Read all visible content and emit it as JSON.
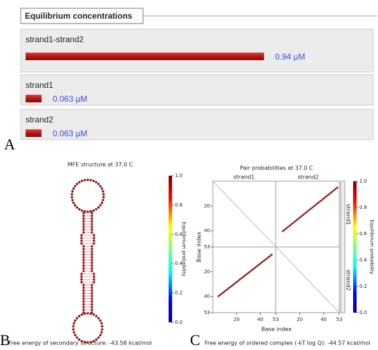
{
  "panel_a": {
    "label": "A",
    "title": "Equilibrium concentrations",
    "concentrations": [
      {
        "name": "strand1-strand2",
        "value": 0.94,
        "label": "0.94 µM"
      },
      {
        "name": "strand1",
        "value": 0.063,
        "label": "0.063 µM"
      },
      {
        "name": "strand2",
        "value": 0.063,
        "label": "0.063 µM"
      }
    ]
  },
  "panel_b": {
    "label": "B",
    "title": "MFE structure at 37.0 C",
    "footer": "Free energy of secondary structure: -43.58 kcal/mol",
    "colorbar": {
      "title": "Equilibrium probability",
      "ticks": [
        {
          "value": 0,
          "label": "0.0"
        },
        0.2,
        0.4,
        0.6,
        0.8,
        {
          "value": 1,
          "label": "1.0"
        }
      ]
    }
  },
  "panel_c": {
    "label": "C",
    "title": "Pair probabilities at 37.0 C",
    "strands": [
      "strand1",
      "strand2"
    ],
    "axis_ticks": [
      20,
      40,
      53
    ],
    "x_label": "Base index",
    "y_label": "Base index",
    "footer": "Free energy of ordered complex (-kT log Q): -44.57 kcal/mol",
    "colorbar": {
      "title": "Equilibrium probability",
      "ticks": [
        {
          "value": 0,
          "label": "0.0"
        },
        0.2,
        0.4,
        0.6,
        0.8,
        {
          "value": 1,
          "label": "1.0"
        }
      ]
    }
  }
}
